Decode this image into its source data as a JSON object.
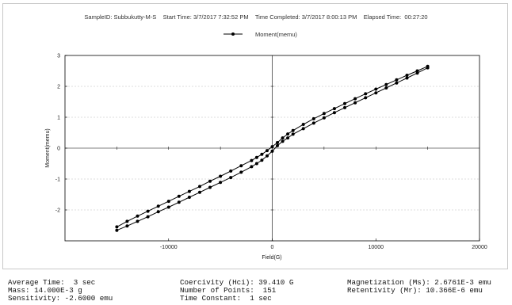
{
  "header": {
    "sample_id": "SampleID: Subbukutty-M-S",
    "start_time": "Start Time: 3/7/2017 7:32:52 PM",
    "time_completed": "Time Completed: 3/7/2017 8:00:13 PM",
    "elapsed_time": "Elapsed Time:  00:27:20"
  },
  "chart_data": {
    "type": "line",
    "xlabel": "Field(G)",
    "ylabel": "Moment(memu)",
    "xlim": [
      -20000,
      20000
    ],
    "ylim": [
      -3,
      3
    ],
    "x_ticks": [
      -10000,
      0,
      10000,
      20000
    ],
    "y_ticks": [
      -2,
      -1,
      0,
      1,
      2,
      3
    ],
    "grid": true,
    "legend_position": "top-center",
    "series": [
      {
        "name": "Moment(memu)",
        "color": "#000000",
        "marker": "circle",
        "branches": [
          {
            "x": [
              15000,
              14000,
              13000,
              12000,
              11000,
              10000,
              9000,
              8000,
              7000,
              6000,
              5000,
              4000,
              3000,
              2000,
              1500,
              1000,
              500,
              0,
              -500,
              -1000,
              -1500,
              -2000,
              -3000,
              -4000,
              -5000,
              -6000,
              -7000,
              -8000,
              -9000,
              -10000,
              -11000,
              -12000,
              -13000,
              -14000,
              -15000
            ],
            "y": [
              2.65,
              2.5,
              2.36,
              2.21,
              2.06,
              1.91,
              1.76,
              1.6,
              1.44,
              1.28,
              1.12,
              0.95,
              0.77,
              0.57,
              0.46,
              0.33,
              0.18,
              0.05,
              -0.08,
              -0.2,
              -0.3,
              -0.4,
              -0.57,
              -0.74,
              -0.91,
              -1.07,
              -1.24,
              -1.4,
              -1.56,
              -1.72,
              -1.88,
              -2.04,
              -2.2,
              -2.37,
              -2.55
            ]
          },
          {
            "x": [
              -15000,
              -14000,
              -13000,
              -12000,
              -11000,
              -10000,
              -9000,
              -8000,
              -7000,
              -6000,
              -5000,
              -4000,
              -3000,
              -2000,
              -1500,
              -1000,
              -500,
              0,
              500,
              1000,
              1500,
              2000,
              3000,
              4000,
              5000,
              6000,
              7000,
              8000,
              9000,
              10000,
              11000,
              12000,
              13000,
              14000,
              15000
            ],
            "y": [
              -2.66,
              -2.52,
              -2.37,
              -2.22,
              -2.06,
              -1.91,
              -1.75,
              -1.59,
              -1.43,
              -1.27,
              -1.11,
              -0.95,
              -0.78,
              -0.6,
              -0.5,
              -0.39,
              -0.25,
              -0.1,
              0.08,
              0.22,
              0.33,
              0.45,
              0.63,
              0.81,
              0.98,
              1.15,
              1.31,
              1.47,
              1.63,
              1.79,
              1.95,
              2.11,
              2.27,
              2.43,
              2.6
            ]
          }
        ]
      }
    ]
  },
  "stats": {
    "average_time": "Average Time:  3 sec",
    "mass": "Mass: 14.000E-3 g",
    "sensitivity": "Sensitivity: -2.6000 emu",
    "coercivity": "Coercivity (Hci): 39.410 G",
    "number_of_points": "Number of Points:  151",
    "time_constant": "Time Constant:  1 sec",
    "magnetization": "Magnetization (Ms): 2.6761E-3 emu",
    "retentivity": "Retentivity (Mr): 10.366E-6 emu"
  }
}
